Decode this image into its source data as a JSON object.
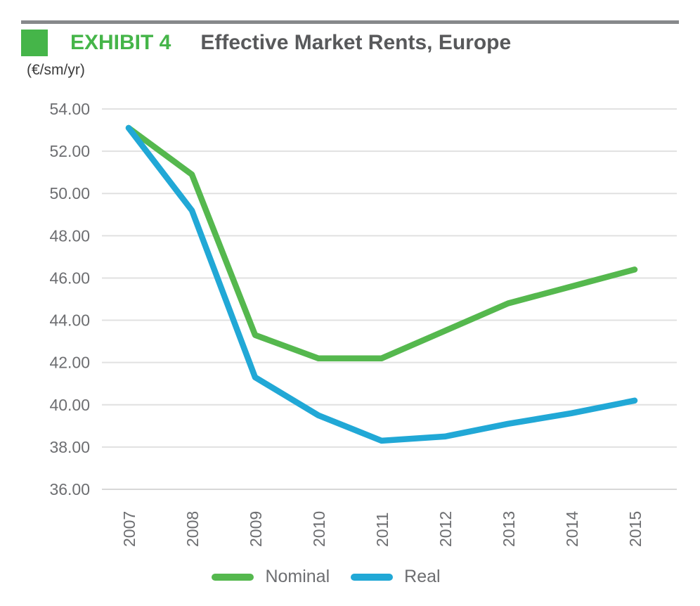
{
  "header": {
    "exhibit_label": "EXHIBIT 4",
    "title": "Effective Market Rents, Europe",
    "units": "(€/sm/yr)"
  },
  "colors": {
    "top_bar": "#87898b",
    "exhibit_green": "#45b549",
    "title_gray": "#58595b",
    "axis_text": "#6d6e71",
    "gridline": "#e1e1e1",
    "axis_line": "#d7d7d7"
  },
  "chart_data": {
    "type": "line",
    "title": "Effective Market Rents, Europe",
    "ylabel": "(€/sm/yr)",
    "xlabel": "",
    "x": [
      2007,
      2008,
      2009,
      2010,
      2011,
      2012,
      2013,
      2014,
      2015
    ],
    "series": [
      {
        "name": "Nominal",
        "color": "#55b84e",
        "values": [
          53.1,
          50.9,
          43.3,
          42.2,
          42.2,
          43.5,
          44.8,
          45.6,
          46.4
        ]
      },
      {
        "name": "Real",
        "color": "#21a8d6",
        "values": [
          53.1,
          49.2,
          41.3,
          39.5,
          38.3,
          38.5,
          39.1,
          39.6,
          40.2
        ]
      }
    ],
    "ylim": [
      36,
      54
    ],
    "ytick_step": 2,
    "ytick_labels": [
      "54.00",
      "52.00",
      "50.00",
      "48.00",
      "46.00",
      "44.00",
      "42.00",
      "40.00",
      "38.00",
      "36.00"
    ],
    "xtick_labels": [
      "2007",
      "2008",
      "2009",
      "2010",
      "2011",
      "2012",
      "2013",
      "2014",
      "2015"
    ],
    "xtick_rotation": -90,
    "grid": "horizontal",
    "legend_position": "bottom"
  }
}
